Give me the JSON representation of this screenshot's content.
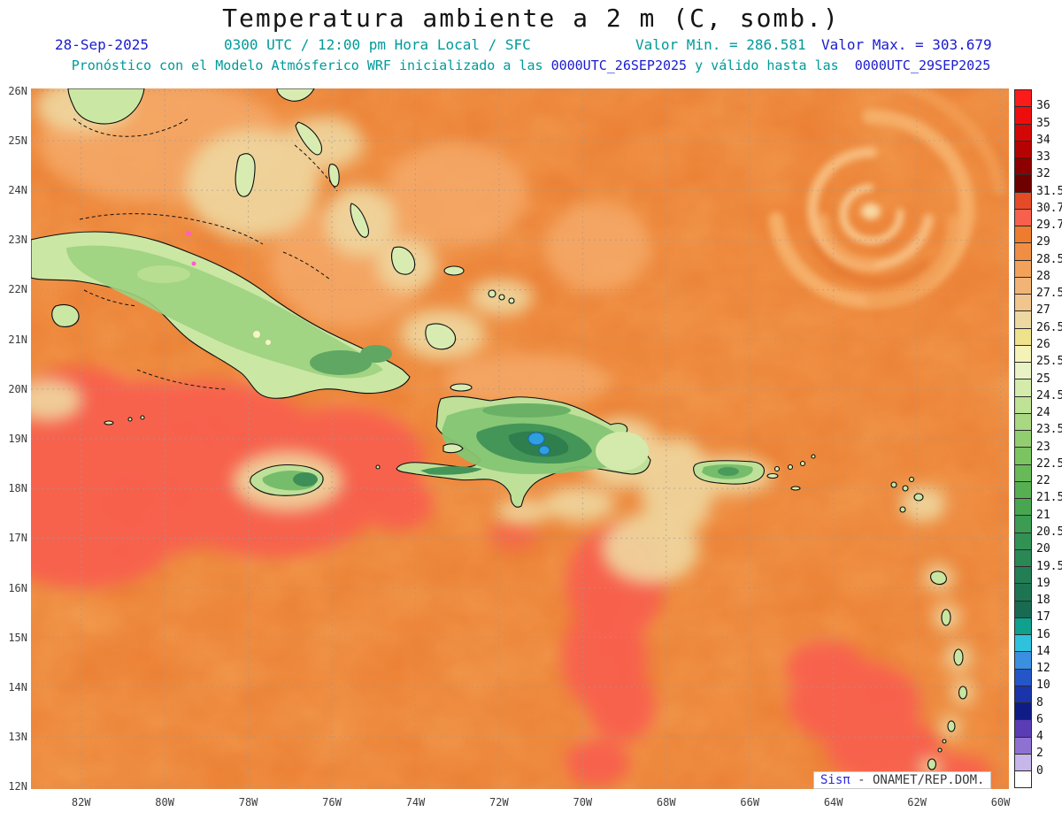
{
  "header": {
    "title": "Temperatura ambiente a 2 m (C, somb.)",
    "date": "28-Sep-2025",
    "time": "0300 UTC / 12:00 pm Hora Local / SFC",
    "valor_min": "Valor Min. = 286.581",
    "valor_max": "Valor Max. = 303.679",
    "forecast_prefix": "Pronóstico con el Modelo Atmósferico WRF inicializado a las ",
    "forecast_init": "0000UTC_26SEP2025",
    "forecast_middle": " y válido hasta las  ",
    "forecast_valid": "0000UTC_29SEP2025"
  },
  "axes": {
    "lat_labels": [
      "26N",
      "25N",
      "24N",
      "23N",
      "22N",
      "21N",
      "20N",
      "19N",
      "18N",
      "17N",
      "16N",
      "15N",
      "14N",
      "13N",
      "12N"
    ],
    "lon_labels": [
      "82W",
      "80W",
      "78W",
      "76W",
      "74W",
      "72W",
      "70W",
      "68W",
      "66W",
      "64W",
      "62W",
      "60W"
    ]
  },
  "colorbar": {
    "labels": [
      "36",
      "35",
      "34",
      "33",
      "32",
      "31.5",
      "30.7",
      "29.7",
      "29",
      "28.5",
      "28",
      "27.5",
      "27",
      "26.5",
      "26",
      "25.5",
      "25",
      "24.5",
      "24",
      "23.5",
      "23",
      "22.5",
      "22",
      "21.5",
      "21",
      "20.5",
      "20",
      "19.5",
      "19",
      "18",
      "17",
      "16",
      "14",
      "12",
      "10",
      "8",
      "6",
      "4",
      "2",
      "0"
    ],
    "colors": [
      "#FB1B1B",
      "#EE0D0D",
      "#D40707",
      "#B50303",
      "#8E0000",
      "#6F0000",
      "#E64B28",
      "#F8604E",
      "#ED7C2E",
      "#F08E44",
      "#F3A25C",
      "#F2B476",
      "#F0C68E",
      "#EED8A2",
      "#EFE28C",
      "#F5F2B8",
      "#E9F2C4",
      "#D4EBAC",
      "#BEE296",
      "#A8D882",
      "#92CE70",
      "#7CC462",
      "#68BA58",
      "#56B052",
      "#48A650",
      "#3C9C52",
      "#329254",
      "#2A8855",
      "#237E55",
      "#1D7453",
      "#186A50",
      "#0FA08E",
      "#2EC2DC",
      "#3A8FE0",
      "#2456C8",
      "#1A34AC",
      "#101C86",
      "#5A3CB4",
      "#8E72D2",
      "#C6B6EA",
      "#FFFFFF"
    ]
  },
  "credit": {
    "brand": "Sisπ",
    "text": " - ONAMET/REP.DOM."
  },
  "chart_data": {
    "type": "heatmap",
    "title": "Temperatura ambiente a 2 m (C, somb.)",
    "valid_datetime": "28-Sep-2025 0300 UTC / 12:00 pm Hora Local / SFC",
    "value_min_kelvin": 286.581,
    "value_max_kelvin": 303.679,
    "model": "WRF",
    "initialized": "0000UTC_26SEP2025",
    "valid_until": "0000UTC_29SEP2025",
    "units": "C",
    "lon_range_deg_west": [
      83.2,
      59.8
    ],
    "lat_range_deg_north": [
      12,
      26
    ],
    "contour_levels": [
      0,
      2,
      4,
      6,
      8,
      10,
      12,
      14,
      16,
      17,
      18,
      19,
      19.5,
      20,
      20.5,
      21,
      21.5,
      22,
      22.5,
      23,
      23.5,
      24,
      24.5,
      25,
      25.5,
      26,
      26.5,
      27,
      27.5,
      28,
      28.5,
      29,
      29.7,
      30.7,
      31.5,
      32,
      33,
      34,
      35,
      36
    ],
    "legend_position": "right",
    "grid": "dashed graticule every 1 deg lat / 2 deg lon",
    "features": [
      {
        "name": "open-sea",
        "approx_temp_c": "28.5-29.7",
        "color": "#EE8135"
      },
      {
        "name": "warm-pools-sw-caribbean-and-south",
        "approx_temp_c": "29.7-30.7",
        "color": "#F8604E"
      },
      {
        "name": "island-land-areas",
        "approx_temp_c": "19-27",
        "color": "#85C573"
      },
      {
        "name": "hispaniola-highland-cold-spot",
        "approx_temp_c": "14-16",
        "color": "#2E9FE0"
      },
      {
        "name": "cyclonic-swirl-northeast",
        "approx_temp_c": "28-29",
        "color": "#F6B473"
      }
    ]
  }
}
